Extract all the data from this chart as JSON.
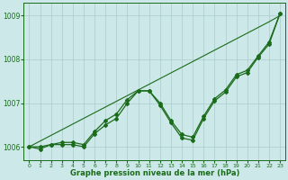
{
  "title": "",
  "xlabel": "Graphe pression niveau de la mer (hPa)",
  "background_color": "#cce8e8",
  "grid_color": "#aacccc",
  "line_color": "#1a6b1a",
  "x": [
    0,
    1,
    2,
    3,
    4,
    5,
    6,
    7,
    8,
    9,
    10,
    11,
    12,
    13,
    14,
    15,
    16,
    17,
    18,
    19,
    20,
    21,
    22,
    23
  ],
  "line_main": [
    1006.0,
    1005.95,
    1006.05,
    1006.05,
    1006.05,
    1006.0,
    1006.3,
    1006.5,
    1006.65,
    1007.0,
    1007.28,
    1007.28,
    1006.95,
    1006.55,
    1006.2,
    1006.15,
    1006.65,
    1007.05,
    1007.25,
    1007.6,
    1007.7,
    1008.05,
    1008.35,
    1009.05
  ],
  "line_smooth": [
    1006.0,
    1006.0,
    1006.05,
    1006.1,
    1006.1,
    1006.05,
    1006.35,
    1006.6,
    1006.75,
    1007.08,
    1007.28,
    1007.28,
    1007.0,
    1006.6,
    1006.28,
    1006.22,
    1006.7,
    1007.1,
    1007.3,
    1007.65,
    1007.75,
    1008.08,
    1008.4,
    1009.05
  ],
  "line_straight": [
    1006.0,
    1006.13,
    1006.26,
    1006.39,
    1006.52,
    1006.65,
    1006.78,
    1006.91,
    1007.04,
    1007.17,
    1007.3,
    1007.43,
    1007.56,
    1007.69,
    1007.82,
    1007.95,
    1008.08,
    1008.21,
    1008.34,
    1008.47,
    1008.6,
    1008.73,
    1008.86,
    1009.0
  ],
  "ylim": [
    1005.7,
    1009.3
  ],
  "yticks": [
    1006,
    1007,
    1008,
    1009
  ],
  "xticks": [
    0,
    1,
    2,
    3,
    4,
    5,
    6,
    7,
    8,
    9,
    10,
    11,
    12,
    13,
    14,
    15,
    16,
    17,
    18,
    19,
    20,
    21,
    22,
    23
  ],
  "xlim": [
    -0.5,
    23.5
  ]
}
